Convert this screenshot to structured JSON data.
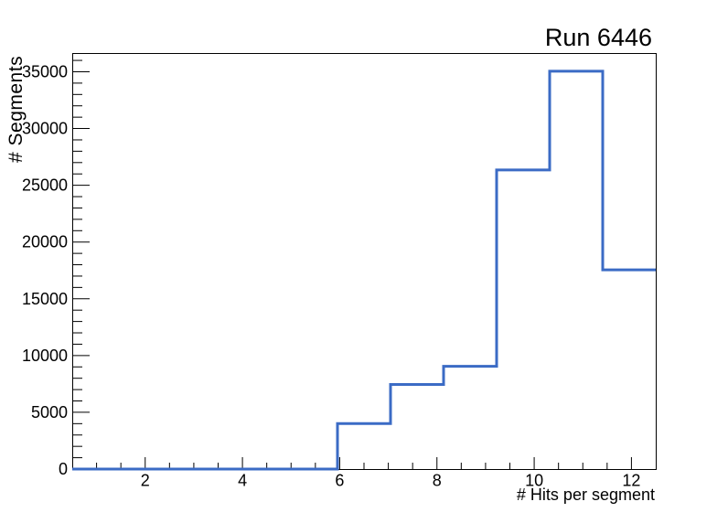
{
  "chart_data": {
    "type": "histogram",
    "title": "Run 6446",
    "xlabel": "# Hits per segment",
    "ylabel": "# Segments",
    "xlim": [
      0.5,
      12.5
    ],
    "ylim": [
      0,
      36650
    ],
    "x_major_ticks": [
      2,
      4,
      6,
      8,
      10,
      12
    ],
    "x_minor_step": 0.5,
    "y_major_ticks": [
      0,
      5000,
      10000,
      15000,
      20000,
      25000,
      30000,
      35000
    ],
    "y_minor_step": 1000,
    "bin_edges": [
      0.5,
      1.5909,
      2.6818,
      3.7727,
      4.8636,
      5.9545,
      7.0455,
      8.1364,
      9.2273,
      10.3182,
      11.4091,
      12.5
    ],
    "counts": [
      0,
      0,
      0,
      0,
      0,
      4000,
      7450,
      9050,
      26350,
      35050,
      17550
    ],
    "line_color": "#3b6bc5",
    "frame_color": "#000000",
    "background": "#ffffff",
    "grid": false,
    "legend": null
  }
}
